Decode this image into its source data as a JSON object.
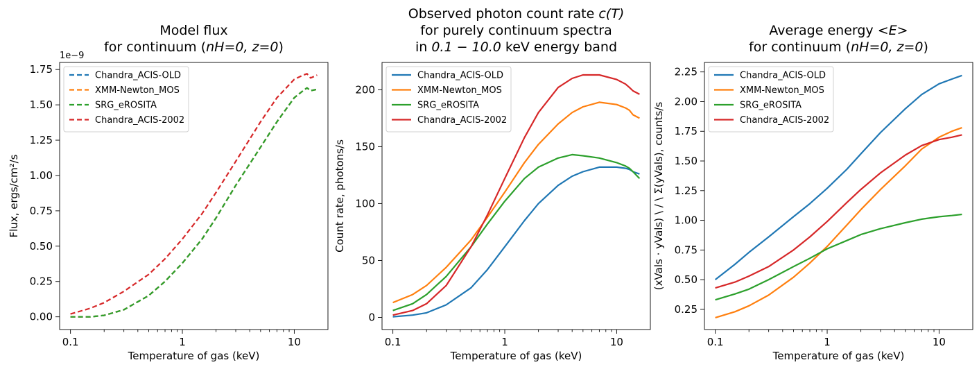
{
  "chart_data": [
    {
      "type": "line",
      "title_lines": [
        "Model flux",
        "for continuum ($n_H=0, z=0$)"
      ],
      "xlabel": "Temperature of gas (keV)",
      "ylabel": "Flux, ergs/cm²/s",
      "offset_label": "1e−9",
      "xscale": "log",
      "xlim": [
        0.08,
        20
      ],
      "ylim": [
        -0.09,
        1.8
      ],
      "xticks": [
        0.1,
        1,
        10
      ],
      "xtick_labels": [
        "0.1",
        "1",
        "10"
      ],
      "yticks": [
        0,
        0.25,
        0.5,
        0.75,
        1.0,
        1.25,
        1.5,
        1.75
      ],
      "ytick_labels": [
        "0.00",
        "0.25",
        "0.50",
        "0.75",
        "1.00",
        "1.25",
        "1.50",
        "1.75"
      ],
      "line_style": "dashed",
      "legend_position": "upper left",
      "grid": false,
      "x": [
        0.1,
        0.15,
        0.2,
        0.3,
        0.5,
        0.7,
        1,
        1.5,
        2,
        3,
        5,
        7,
        10,
        12,
        13,
        14,
        16
      ],
      "series": [
        {
          "name": "Chandra_ACIS-OLD",
          "color": "#1f77b4",
          "values": [
            0.0,
            0.0,
            0.01,
            0.05,
            0.15,
            0.25,
            0.38,
            0.55,
            0.7,
            0.93,
            1.2,
            1.38,
            1.55,
            1.6,
            1.62,
            1.6,
            1.61
          ]
        },
        {
          "name": "XMM-Newton_MOS",
          "color": "#ff7f0e",
          "values": [
            0.0,
            0.0,
            0.01,
            0.05,
            0.15,
            0.25,
            0.38,
            0.55,
            0.7,
            0.93,
            1.2,
            1.38,
            1.55,
            1.6,
            1.62,
            1.6,
            1.61
          ]
        },
        {
          "name": "SRG_eROSITA",
          "color": "#2ca02c",
          "values": [
            0.0,
            0.0,
            0.01,
            0.05,
            0.15,
            0.25,
            0.38,
            0.55,
            0.7,
            0.93,
            1.2,
            1.38,
            1.55,
            1.6,
            1.62,
            1.6,
            1.61
          ]
        },
        {
          "name": "Chandra_ACIS-2002",
          "color": "#d62728",
          "values": [
            0.02,
            0.06,
            0.1,
            0.18,
            0.3,
            0.41,
            0.55,
            0.73,
            0.88,
            1.1,
            1.38,
            1.55,
            1.68,
            1.71,
            1.72,
            1.69,
            1.71
          ]
        }
      ]
    },
    {
      "type": "line",
      "title_lines": [
        "Observed photon count rate $c(T)$",
        "for purely continuum spectra",
        "in $0.1 - 10.0$ keV energy band"
      ],
      "xlabel": "Temperature of gas (keV)",
      "ylabel": "Count rate, photons/s",
      "offset_label": "",
      "xscale": "log",
      "xlim": [
        0.08,
        20
      ],
      "ylim": [
        -10.7,
        224
      ],
      "xticks": [
        0.1,
        1,
        10
      ],
      "xtick_labels": [
        "0.1",
        "1",
        "10"
      ],
      "yticks": [
        0,
        50,
        100,
        150,
        200
      ],
      "ytick_labels": [
        "0",
        "50",
        "100",
        "150",
        "200"
      ],
      "line_style": "solid",
      "legend_position": "upper left",
      "grid": false,
      "x": [
        0.1,
        0.15,
        0.2,
        0.3,
        0.5,
        0.7,
        1,
        1.5,
        2,
        3,
        4,
        5,
        7,
        10,
        12,
        13,
        14,
        16
      ],
      "series": [
        {
          "name": "Chandra_ACIS-OLD",
          "color": "#1f77b4",
          "values": [
            0.5,
            2,
            4,
            11,
            26,
            42,
            62,
            85,
            100,
            116,
            124,
            128,
            132,
            132,
            131,
            130,
            128,
            126
          ]
        },
        {
          "name": "XMM-Newton_MOS",
          "color": "#ff7f0e",
          "values": [
            13,
            20,
            28,
            44,
            68,
            88,
            110,
            136,
            152,
            170,
            180,
            185,
            189,
            187,
            184,
            182,
            178,
            175
          ]
        },
        {
          "name": "SRG_eROSITA",
          "color": "#2ca02c",
          "values": [
            6,
            12,
            20,
            36,
            62,
            82,
            102,
            122,
            132,
            140,
            143,
            142,
            140,
            136,
            133,
            131,
            128,
            122
          ]
        },
        {
          "name": "Chandra_ACIS-2002",
          "color": "#d62728",
          "values": [
            2,
            6,
            12,
            28,
            62,
            90,
            122,
            158,
            180,
            202,
            210,
            213,
            213,
            209,
            205,
            202,
            199,
            196
          ]
        }
      ]
    },
    {
      "type": "line",
      "title_lines": [
        "Average energy $<E>$",
        "for continuum ($n_H=0, z=0$)"
      ],
      "xlabel": "Temperature of gas (keV)",
      "ylabel": "(xVals · yVals) \\ / \\ Σ(yVals), counts/s",
      "offset_label": "",
      "xscale": "log",
      "xlim": [
        0.08,
        20
      ],
      "ylim": [
        0.08,
        2.33
      ],
      "xticks": [
        0.1,
        1,
        10
      ],
      "xtick_labels": [
        "0.1",
        "1",
        "10"
      ],
      "yticks": [
        0.25,
        0.5,
        0.75,
        1.0,
        1.25,
        1.5,
        1.75,
        2.0,
        2.25
      ],
      "ytick_labels": [
        "0.25",
        "0.50",
        "0.75",
        "1.00",
        "1.25",
        "1.50",
        "1.75",
        "2.00",
        "2.25"
      ],
      "line_style": "solid",
      "legend_position": "upper left",
      "grid": false,
      "x": [
        0.1,
        0.15,
        0.2,
        0.3,
        0.5,
        0.7,
        1,
        1.5,
        2,
        3,
        5,
        7,
        10,
        13,
        16
      ],
      "series": [
        {
          "name": "Chandra_ACIS-OLD",
          "color": "#1f77b4",
          "values": [
            0.5,
            0.63,
            0.73,
            0.86,
            1.03,
            1.14,
            1.27,
            1.43,
            1.56,
            1.74,
            1.94,
            2.06,
            2.15,
            2.19,
            2.22
          ]
        },
        {
          "name": "XMM-Newton_MOS",
          "color": "#ff7f0e",
          "values": [
            0.18,
            0.23,
            0.28,
            0.37,
            0.52,
            0.64,
            0.78,
            0.96,
            1.09,
            1.26,
            1.46,
            1.6,
            1.7,
            1.75,
            1.78
          ]
        },
        {
          "name": "SRG_eROSITA",
          "color": "#2ca02c",
          "values": [
            0.33,
            0.38,
            0.42,
            0.5,
            0.61,
            0.68,
            0.76,
            0.83,
            0.88,
            0.93,
            0.98,
            1.01,
            1.03,
            1.04,
            1.05
          ]
        },
        {
          "name": "Chandra_ACIS-2002",
          "color": "#d62728",
          "values": [
            0.43,
            0.48,
            0.53,
            0.61,
            0.75,
            0.86,
            0.99,
            1.15,
            1.26,
            1.4,
            1.55,
            1.63,
            1.68,
            1.7,
            1.72
          ]
        }
      ]
    }
  ]
}
